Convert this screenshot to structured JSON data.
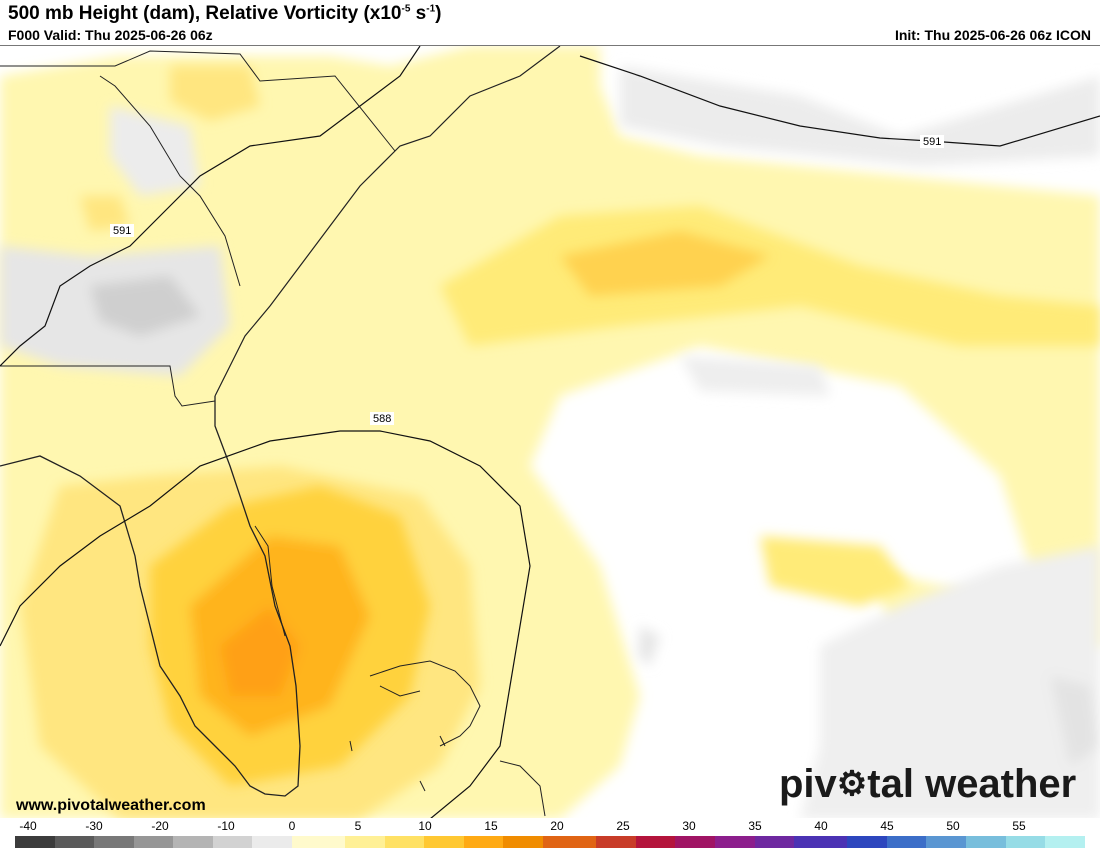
{
  "header": {
    "title": "500 mb Height (dam), Relative Vorticity (x10",
    "title_exp1": "-5",
    "title_mid": " s",
    "title_exp2": "-1",
    "title_end": ")",
    "valid": "F000 Valid: Thu 2025-06-26 06z",
    "init": "Init: Thu 2025-06-26 06z ICON"
  },
  "contours": {
    "north_591": "591",
    "west_591": "591",
    "south_588": "588"
  },
  "footer": {
    "website": "www.pivotalweather.com",
    "brand_before": "piv",
    "brand_after": "tal weather"
  },
  "colorbar": {
    "labels": [
      "-40",
      "-30",
      "-20",
      "-10",
      "0",
      "5",
      "10",
      "15",
      "20",
      "25",
      "30",
      "35",
      "40",
      "45",
      "50",
      "55"
    ],
    "colors": {
      "negative": [
        "#3c3c3c",
        "#5a5a5a",
        "#787878",
        "#969696",
        "#b4b4b4",
        "#d2d2d2",
        "#ebebeb"
      ],
      "positive": [
        "#fffacc",
        "#fff096",
        "#ffe164",
        "#ffc832",
        "#ffaa14",
        "#f08c00",
        "#e06414",
        "#c83c28",
        "#b4143c",
        "#a01464",
        "#8c1e8c",
        "#6e28a0",
        "#4b32b4",
        "#2d46be",
        "#3c6ec8",
        "#5a96d2",
        "#78bedc",
        "#96dce6",
        "#b4f0f0"
      ]
    }
  }
}
